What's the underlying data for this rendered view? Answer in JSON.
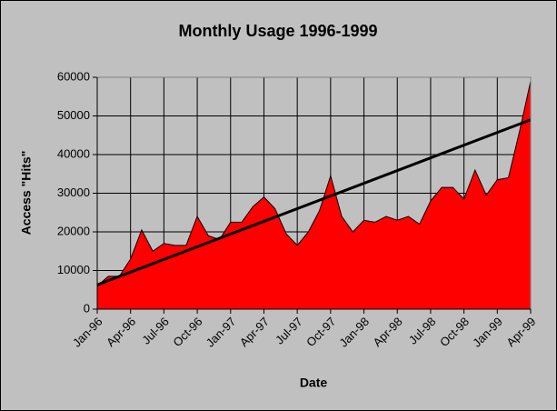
{
  "chart_data": {
    "type": "area",
    "title": "Monthly Usage 1996-1999",
    "x_label": "Date",
    "y_label": "Access \"Hits\"",
    "categories": [
      "Jan-96",
      null,
      null,
      "Apr-96",
      null,
      null,
      "Jul-96",
      null,
      null,
      "Oct-96",
      null,
      null,
      "Jan-97",
      null,
      null,
      "Apr-97",
      null,
      null,
      "Jul-97",
      null,
      null,
      "Oct-97",
      null,
      null,
      "Jan-98",
      null,
      null,
      "Apr-98",
      null,
      null,
      "Jul-98",
      null,
      null,
      "Oct-98",
      null,
      null,
      "Jan-99",
      null,
      null,
      "Apr-99"
    ],
    "series": [
      {
        "name": "Access \"Hits\"",
        "color": "#ff0000",
        "values": [
          6000,
          8500,
          8500,
          13000,
          20500,
          15000,
          17000,
          16500,
          16500,
          24000,
          19000,
          18000,
          22500,
          22500,
          26500,
          29000,
          26000,
          19500,
          16500,
          20000,
          25500,
          34500,
          24000,
          20000,
          23000,
          22500,
          24000,
          23000,
          24000,
          22000,
          28000,
          31500,
          31500,
          28500,
          36000,
          29500,
          33500,
          34000,
          46000,
          59000
        ]
      }
    ],
    "trendline": {
      "start": 6300,
      "end": 49000,
      "color": "#000000"
    },
    "ylim": [
      0,
      60000
    ],
    "yticks": [
      0,
      10000,
      20000,
      30000,
      40000,
      50000,
      60000
    ],
    "grid": true
  }
}
